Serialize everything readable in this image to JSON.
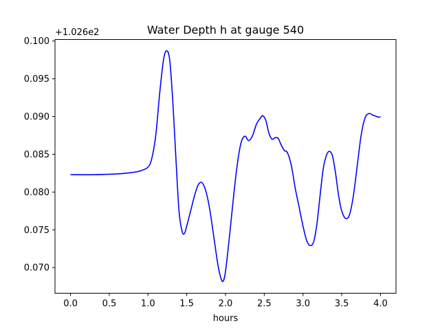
{
  "chart_data": {
    "type": "line",
    "title": "Water Depth h at gauge 540",
    "xlabel": "hours",
    "ylabel": "",
    "offset_label": "+1.026e2",
    "xlim": [
      -0.2,
      4.2
    ],
    "ylim": [
      0.0666,
      0.1002
    ],
    "x_ticks": [
      0.0,
      0.5,
      1.0,
      1.5,
      2.0,
      2.5,
      3.0,
      3.5,
      4.0
    ],
    "x_tick_labels": [
      "0.0",
      "0.5",
      "1.0",
      "1.5",
      "2.0",
      "2.5",
      "3.0",
      "3.5",
      "4.0"
    ],
    "y_ticks": [
      0.07,
      0.075,
      0.08,
      0.085,
      0.09,
      0.095,
      0.1
    ],
    "y_tick_labels": [
      "0.070",
      "0.075",
      "0.080",
      "0.085",
      "0.090",
      "0.095",
      "0.100"
    ],
    "grid": false,
    "series": [
      {
        "color": "#0000ff",
        "x": [
          0.0,
          0.3,
          0.6,
          0.8,
          0.9,
          1.0,
          1.05,
          1.1,
          1.15,
          1.2,
          1.24,
          1.28,
          1.32,
          1.36,
          1.4,
          1.44,
          1.47,
          1.5,
          1.55,
          1.6,
          1.65,
          1.7,
          1.75,
          1.8,
          1.85,
          1.9,
          1.94,
          1.97,
          2.0,
          2.05,
          2.1,
          2.15,
          2.2,
          2.25,
          2.3,
          2.35,
          2.4,
          2.45,
          2.48,
          2.52,
          2.56,
          2.6,
          2.64,
          2.68,
          2.72,
          2.76,
          2.8,
          2.85,
          2.9,
          2.95,
          3.0,
          3.05,
          3.1,
          3.14,
          3.18,
          3.22,
          3.26,
          3.3,
          3.34,
          3.38,
          3.42,
          3.46,
          3.5,
          3.55,
          3.6,
          3.65,
          3.7,
          3.75,
          3.8,
          3.85,
          3.9,
          3.95,
          3.98,
          4.0
        ],
        "y": [
          0.0823,
          0.0823,
          0.0824,
          0.0826,
          0.0828,
          0.0833,
          0.0845,
          0.0875,
          0.093,
          0.0975,
          0.0987,
          0.0975,
          0.092,
          0.0845,
          0.0775,
          0.0748,
          0.0745,
          0.0755,
          0.0775,
          0.0795,
          0.081,
          0.0812,
          0.08,
          0.0775,
          0.074,
          0.0705,
          0.0686,
          0.0682,
          0.0695,
          0.074,
          0.079,
          0.0835,
          0.0865,
          0.0874,
          0.0868,
          0.0875,
          0.089,
          0.0898,
          0.0901,
          0.0895,
          0.0878,
          0.087,
          0.0872,
          0.0871,
          0.0862,
          0.0855,
          0.0852,
          0.0835,
          0.0805,
          0.078,
          0.0755,
          0.0735,
          0.0729,
          0.0735,
          0.0758,
          0.0795,
          0.083,
          0.0848,
          0.0854,
          0.0848,
          0.0825,
          0.0795,
          0.0775,
          0.0765,
          0.077,
          0.0795,
          0.0835,
          0.0875,
          0.0898,
          0.0904,
          0.0902,
          0.09,
          0.0899,
          0.09
        ]
      }
    ]
  }
}
